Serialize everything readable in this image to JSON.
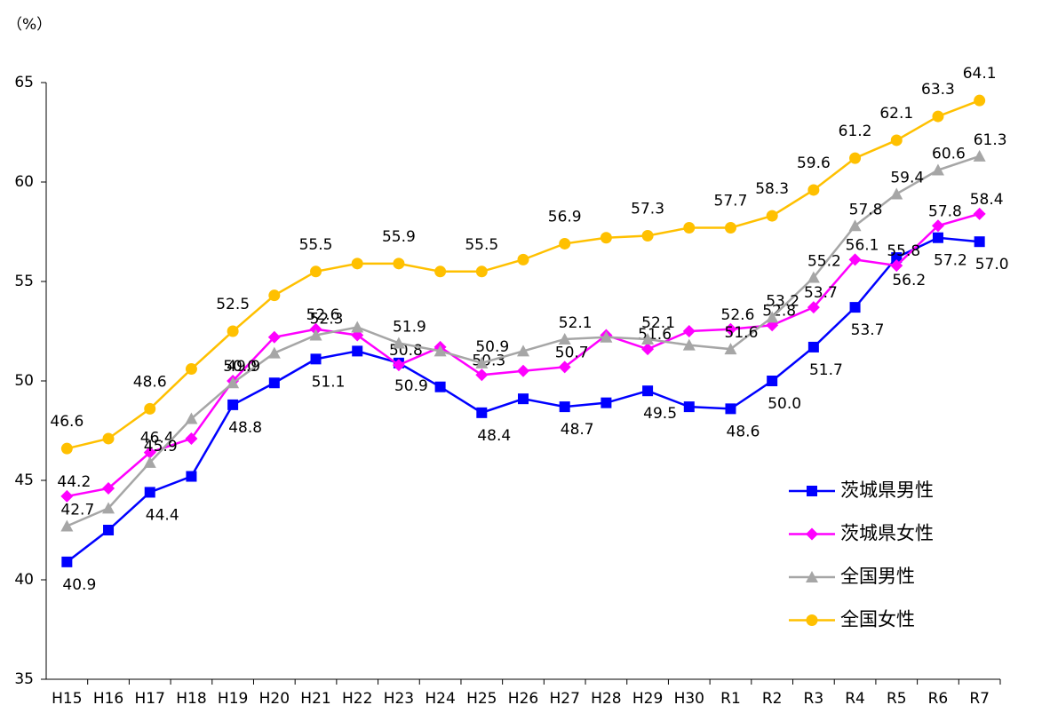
{
  "chart_data": {
    "type": "line",
    "y_label": "（%）",
    "categories": [
      "H15",
      "H16",
      "H17",
      "H18",
      "H19",
      "H20",
      "H21",
      "H22",
      "H23",
      "H24",
      "H25",
      "H26",
      "H27",
      "H28",
      "H29",
      "H30",
      "R1",
      "R2",
      "R3",
      "R4",
      "R5",
      "R6",
      "R7"
    ],
    "ylim": [
      35,
      65
    ],
    "yticks": [
      35,
      40,
      45,
      50,
      55,
      60,
      65
    ],
    "grid": false,
    "legend": "lower right",
    "series": [
      {
        "name": "茨城県男性",
        "color": "#0000ff",
        "marker": "square",
        "values": [
          40.9,
          42.5,
          44.4,
          45.2,
          48.8,
          49.9,
          51.1,
          51.5,
          50.9,
          49.7,
          48.4,
          49.1,
          48.7,
          48.9,
          49.5,
          48.7,
          48.6,
          50.0,
          51.7,
          53.7,
          56.2,
          57.2,
          57.0
        ],
        "value_labels": [
          "40.9",
          null,
          "44.4",
          null,
          "48.8",
          null,
          "51.1",
          null,
          "50.9",
          null,
          "48.4",
          null,
          "48.7",
          null,
          "49.5",
          null,
          "48.6",
          "50.0",
          "51.7",
          "53.7",
          "56.2",
          "57.2",
          "57.0"
        ]
      },
      {
        "name": "茨城県女性",
        "color": "#ff00ff",
        "marker": "diamond",
        "values": [
          44.2,
          44.6,
          46.4,
          47.1,
          50.0,
          52.2,
          52.6,
          52.3,
          50.8,
          51.7,
          50.3,
          50.5,
          50.7,
          52.3,
          51.6,
          52.5,
          52.6,
          52.8,
          53.7,
          56.1,
          55.8,
          57.8,
          58.4
        ],
        "value_labels": [
          "44.2",
          null,
          "46.4",
          null,
          "50.0",
          null,
          "52.6",
          null,
          "50.8",
          null,
          "50.3",
          null,
          "50.7",
          null,
          "51.6",
          null,
          "52.6",
          "52.8",
          "53.7",
          "56.1",
          "55.8",
          "57.8",
          "58.4"
        ]
      },
      {
        "name": "全国男性",
        "color": "#a6a6a6",
        "marker": "triangle",
        "values": [
          42.7,
          43.6,
          45.9,
          48.1,
          49.9,
          51.4,
          52.3,
          52.7,
          51.9,
          51.5,
          50.9,
          51.5,
          52.1,
          52.2,
          52.1,
          51.8,
          51.6,
          53.2,
          55.2,
          57.8,
          59.4,
          60.6,
          61.3
        ],
        "value_labels": [
          "42.7",
          null,
          "45.9",
          null,
          "49.9",
          null,
          "52.3",
          null,
          "51.9",
          null,
          "50.9",
          null,
          "52.1",
          null,
          "52.1",
          null,
          "51.6",
          "53.2",
          "55.2",
          "57.8",
          "59.4",
          "60.6",
          "61.3"
        ]
      },
      {
        "name": "全国女性",
        "color": "#ffc000",
        "marker": "circle",
        "values": [
          46.6,
          47.1,
          48.6,
          50.6,
          52.5,
          54.3,
          55.5,
          55.9,
          55.9,
          55.5,
          55.5,
          56.1,
          56.9,
          57.2,
          57.3,
          57.7,
          57.7,
          58.3,
          59.6,
          61.2,
          62.1,
          63.3,
          64.1
        ],
        "value_labels": [
          "46.6",
          null,
          "48.6",
          null,
          "52.5",
          null,
          "55.5",
          null,
          "55.9",
          null,
          "55.5",
          null,
          "56.9",
          null,
          "57.3",
          null,
          "57.7",
          "58.3",
          "59.6",
          "61.2",
          "62.1",
          "63.3",
          "64.1"
        ]
      }
    ]
  }
}
